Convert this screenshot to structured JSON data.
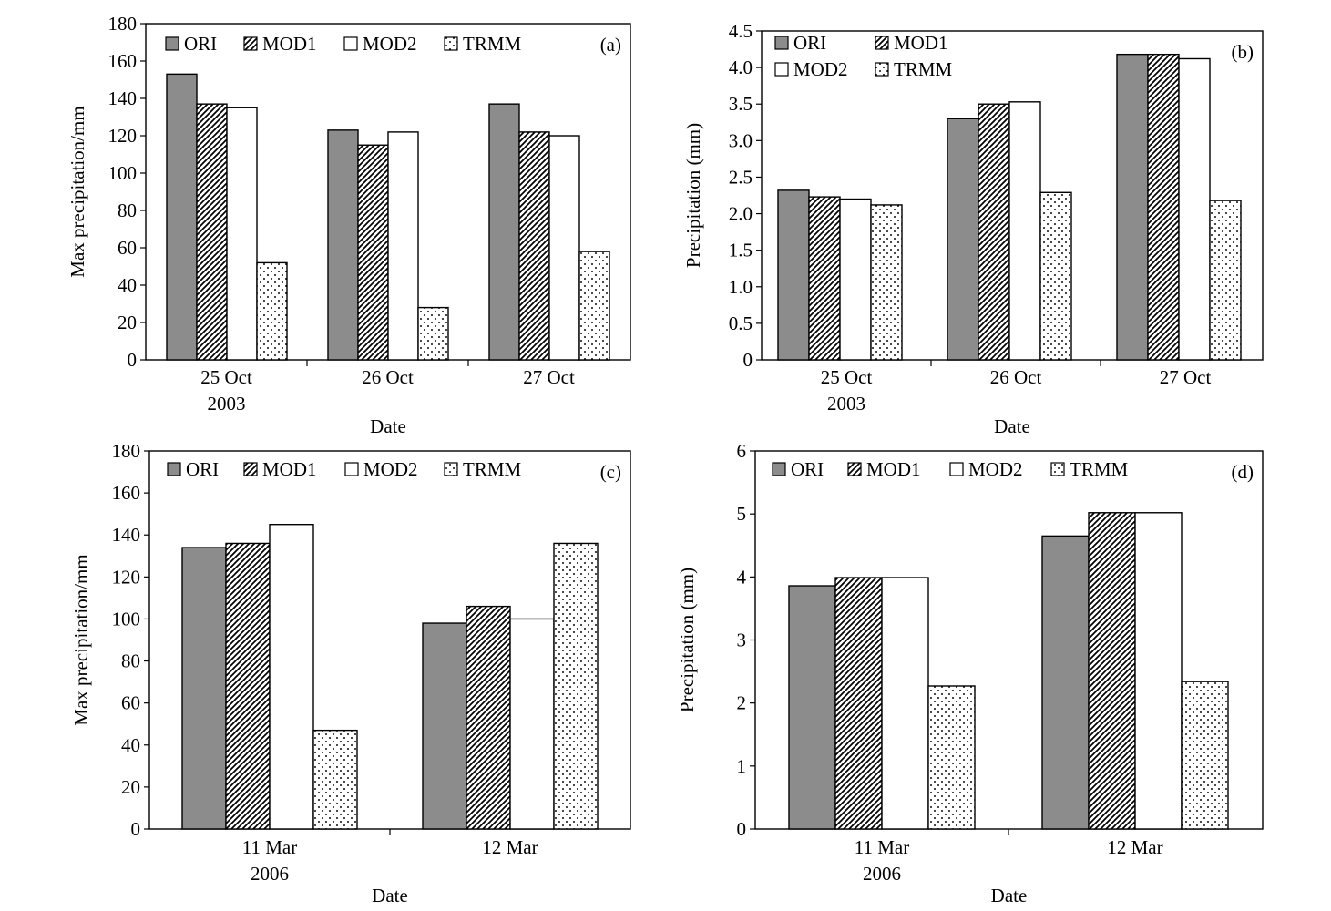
{
  "colors": {
    "ori_fill": "#8c8c8c",
    "stroke": "#000000",
    "background": "#ffffff"
  },
  "legend": {
    "items": [
      {
        "key": "ori",
        "label": "ORI",
        "pattern": "solid-gray"
      },
      {
        "key": "mod1",
        "label": "MOD1",
        "pattern": "diagonal-hatch"
      },
      {
        "key": "mod2",
        "label": "MOD2",
        "pattern": "empty"
      },
      {
        "key": "trmm",
        "label": "TRMM",
        "pattern": "dots"
      }
    ]
  },
  "chart_data": [
    {
      "panel": "(a)",
      "type": "bar",
      "xlabel": "Date",
      "ylabel": "Max precipitation/mm",
      "categories": [
        "25 Oct",
        "26 Oct",
        "27 Oct"
      ],
      "category_sublabels": [
        "2003",
        "",
        ""
      ],
      "ylim": [
        0,
        180
      ],
      "yticks": [
        "0",
        "20",
        "40",
        "60",
        "80",
        "100",
        "120",
        "140",
        "160",
        "180"
      ],
      "legend_placement": "top-left, single row",
      "grid": false,
      "series": [
        {
          "name": "ORI",
          "values": [
            153,
            123,
            137
          ]
        },
        {
          "name": "MOD1",
          "values": [
            137,
            115,
            122
          ]
        },
        {
          "name": "MOD2",
          "values": [
            135,
            122,
            120
          ]
        },
        {
          "name": "TRMM",
          "values": [
            52,
            28,
            58
          ]
        }
      ]
    },
    {
      "panel": "(b)",
      "type": "bar",
      "xlabel": "Date",
      "ylabel": "Precipitation (mm)",
      "categories": [
        "25 Oct",
        "26 Oct",
        "27 Oct"
      ],
      "category_sublabels": [
        "2003",
        "",
        ""
      ],
      "ylim": [
        0,
        4.5
      ],
      "yticks": [
        "0",
        "0.5",
        "1.0",
        "1.5",
        "2.0",
        "2.5",
        "3.0",
        "3.5",
        "4.0",
        "4.5"
      ],
      "legend_placement": "top-left, two rows",
      "grid": false,
      "series": [
        {
          "name": "ORI",
          "values": [
            2.32,
            3.3,
            4.18
          ]
        },
        {
          "name": "MOD1",
          "values": [
            2.23,
            3.5,
            4.18
          ]
        },
        {
          "name": "MOD2",
          "values": [
            2.2,
            3.53,
            4.12
          ]
        },
        {
          "name": "TRMM",
          "values": [
            2.12,
            2.29,
            2.18
          ]
        }
      ]
    },
    {
      "panel": "(c)",
      "type": "bar",
      "xlabel": "Date",
      "ylabel": "Max precipitation/mm",
      "categories": [
        "11 Mar",
        "12 Mar"
      ],
      "category_sublabels": [
        "2006",
        ""
      ],
      "ylim": [
        0,
        180
      ],
      "yticks": [
        "0",
        "20",
        "40",
        "60",
        "80",
        "100",
        "120",
        "140",
        "160",
        "180"
      ],
      "legend_placement": "top-left, single row",
      "grid": false,
      "series": [
        {
          "name": "ORI",
          "values": [
            134,
            98
          ]
        },
        {
          "name": "MOD1",
          "values": [
            136,
            106
          ]
        },
        {
          "name": "MOD2",
          "values": [
            145,
            100
          ]
        },
        {
          "name": "TRMM",
          "values": [
            47,
            136
          ]
        }
      ]
    },
    {
      "panel": "(d)",
      "type": "bar",
      "xlabel": "Date",
      "ylabel": "Precipitation (mm)",
      "categories": [
        "11 Mar",
        "12 Mar"
      ],
      "category_sublabels": [
        "2006",
        ""
      ],
      "ylim": [
        0,
        6
      ],
      "yticks": [
        "0",
        "1",
        "2",
        "3",
        "4",
        "5",
        "6"
      ],
      "legend_placement": "top-left, single row",
      "grid": false,
      "series": [
        {
          "name": "ORI",
          "values": [
            3.86,
            4.65
          ]
        },
        {
          "name": "MOD1",
          "values": [
            3.99,
            5.02
          ]
        },
        {
          "name": "MOD2",
          "values": [
            3.99,
            5.02
          ]
        },
        {
          "name": "TRMM",
          "values": [
            2.27,
            2.34
          ]
        }
      ]
    }
  ]
}
